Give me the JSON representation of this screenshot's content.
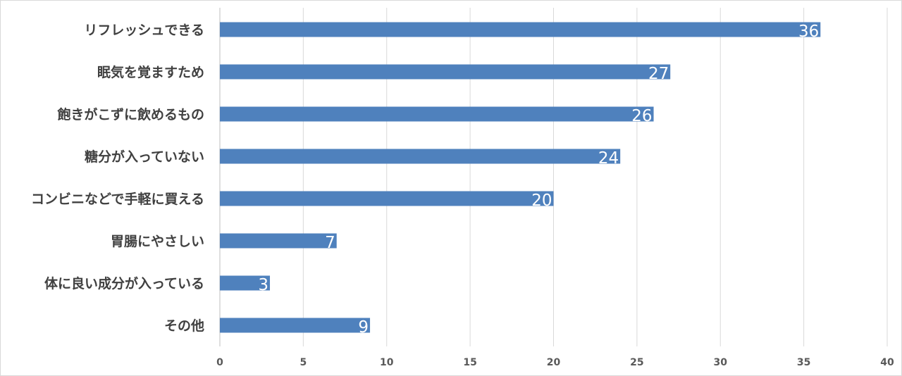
{
  "chart_data": {
    "type": "bar",
    "orientation": "horizontal",
    "categories": [
      "リフレッシュできる",
      "眠気を覚ますため",
      "飽きがこずに飲めるもの",
      "糖分が入っていない",
      "コンビニなどで手軽に買える",
      "胃腸にやさしい",
      "体に良い成分が入っている",
      "その他"
    ],
    "values": [
      36,
      27,
      26,
      24,
      20,
      7,
      3,
      9
    ],
    "data_labels": [
      "36",
      "27",
      "26",
      "24",
      "20",
      "7",
      "3",
      "9"
    ],
    "xlim": [
      0,
      40
    ],
    "x_ticks": [
      "0",
      "5",
      "10",
      "15",
      "20",
      "25",
      "30",
      "35",
      "40"
    ],
    "title": "",
    "xlabel": "",
    "ylabel": "",
    "grid": "vertical",
    "legend": "none",
    "bar_color": "#4f81bd",
    "label_color": "#ffffff"
  }
}
